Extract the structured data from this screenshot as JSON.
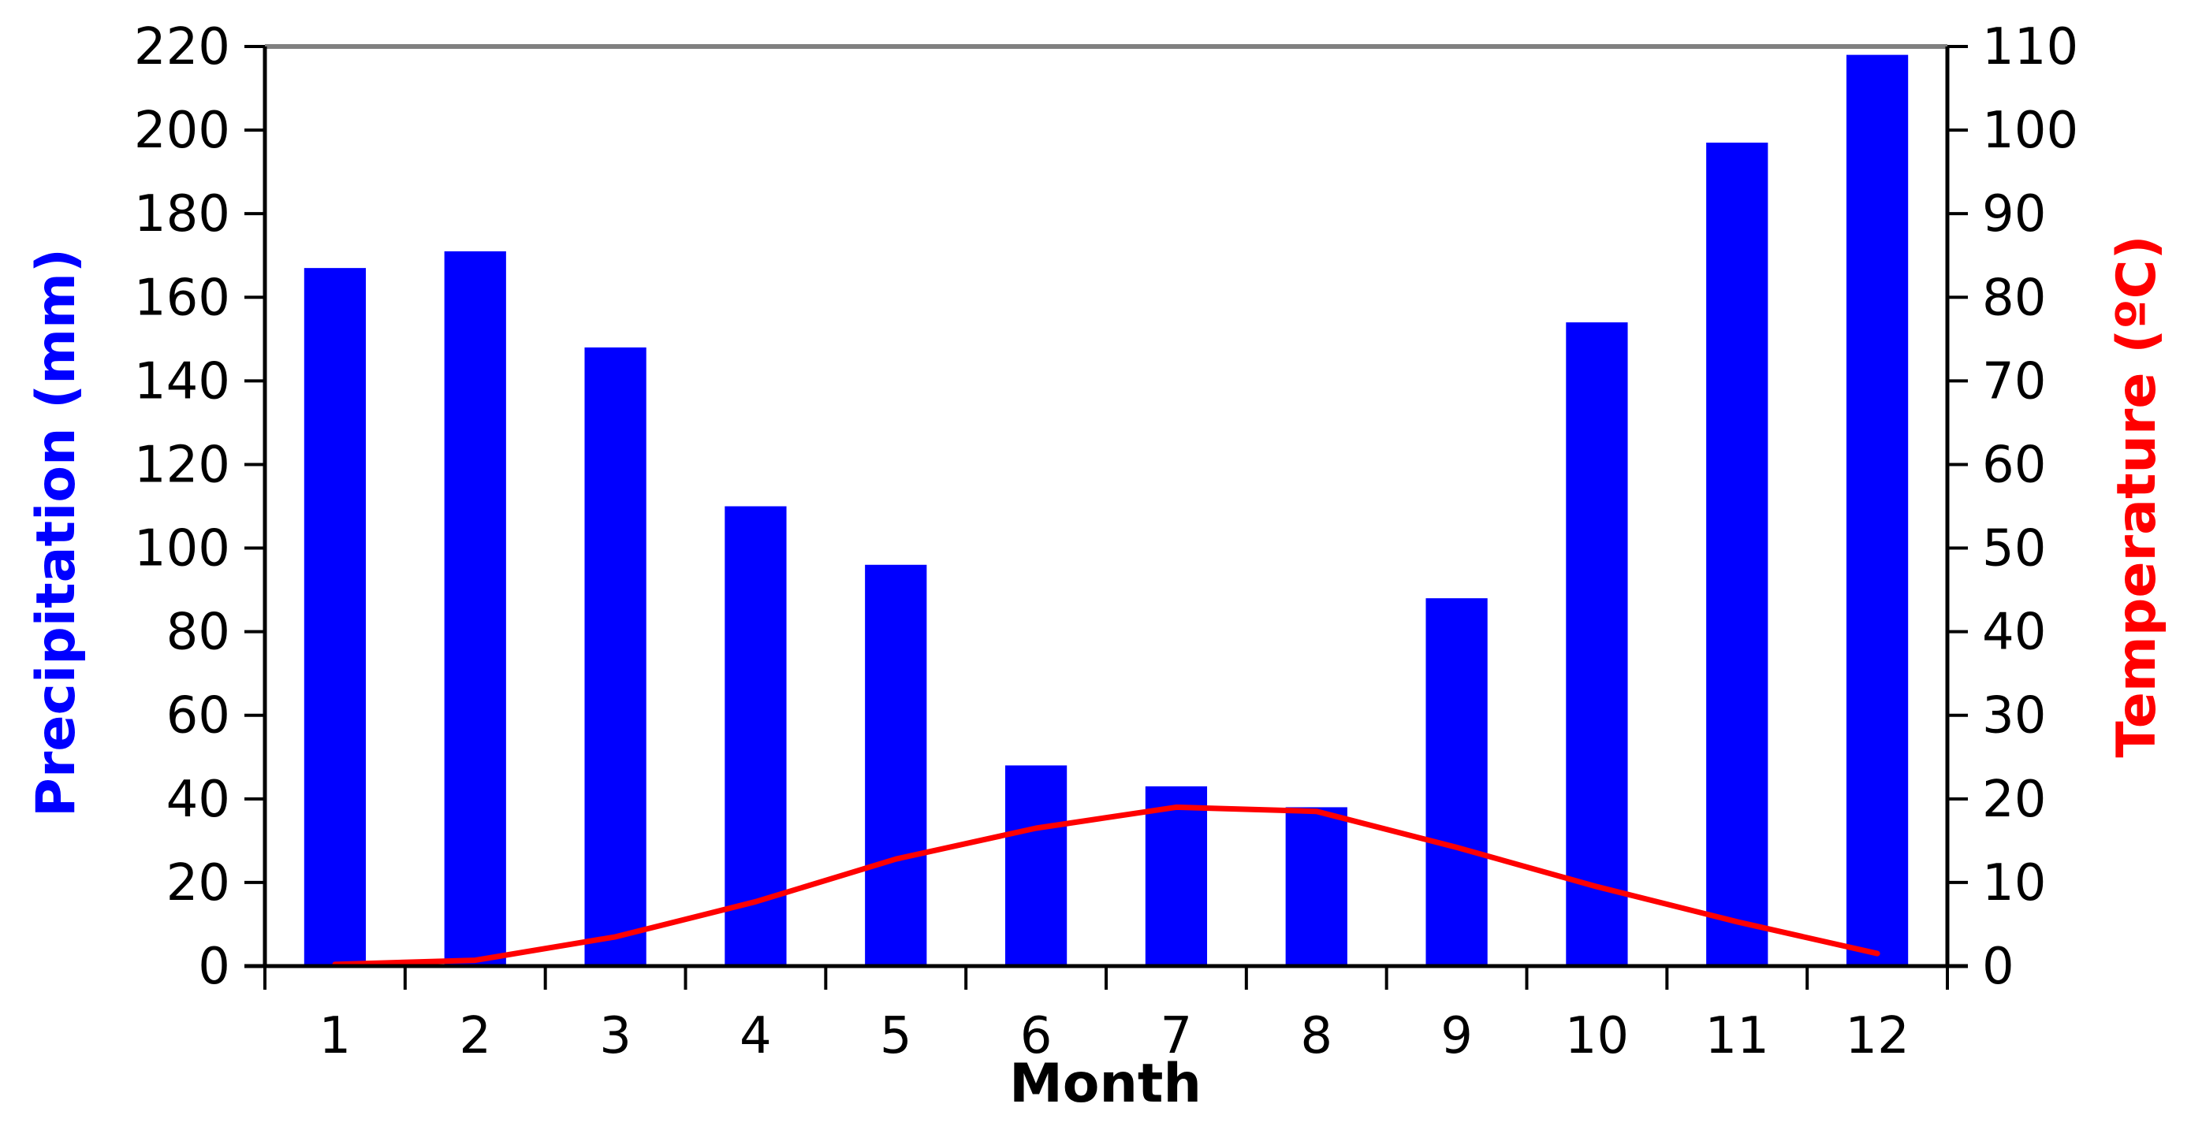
{
  "chart_data": {
    "type": "bar",
    "categories": [
      "1",
      "2",
      "3",
      "4",
      "5",
      "6",
      "7",
      "8",
      "9",
      "10",
      "11",
      "12"
    ],
    "series": [
      {
        "kind": "bar",
        "axis": "left",
        "color": "#0000ff",
        "values": [
          167,
          171,
          148,
          110,
          96,
          48,
          43,
          38,
          88,
          154,
          197,
          218
        ]
      },
      {
        "kind": "line",
        "axis": "right",
        "color": "#ff0000",
        "values": [
          0.2,
          0.7,
          3.5,
          7.7,
          12.8,
          16.5,
          19.0,
          18.5,
          14.2,
          9.5,
          5.3,
          1.5
        ]
      }
    ],
    "xlabel": "Month",
    "ylabel": "Precipitation (mm)",
    "ylabel_color": "#0000ff",
    "y2label": "Temperature (ºC)",
    "y2label_color": "#ff0000",
    "ylim": [
      0,
      220
    ],
    "y2lim": [
      0,
      110
    ],
    "yticks": [
      "0",
      "20",
      "40",
      "60",
      "80",
      "100",
      "120",
      "140",
      "160",
      "180",
      "200",
      "220"
    ],
    "y2ticks": [
      "0",
      "10",
      "20",
      "30",
      "40",
      "50",
      "60",
      "70",
      "80",
      "90",
      "100",
      "110"
    ],
    "grid": false,
    "legend": "none"
  }
}
